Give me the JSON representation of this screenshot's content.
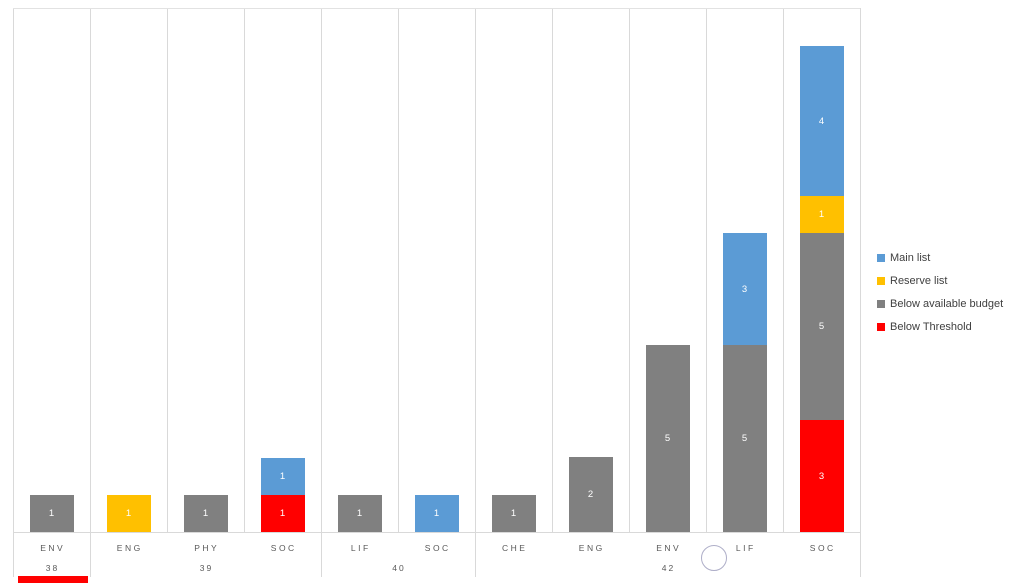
{
  "chart_data": {
    "type": "bar",
    "stacked": true,
    "title": "",
    "xlabel": "",
    "ylabel": "",
    "ylim": [
      0,
      14
    ],
    "y_axis_labels_visible": false,
    "gridlines": "vertical-at-category-boundaries-plus-top-line",
    "legend_position": "right",
    "data_labels": "segment values, white, centered",
    "groups": [
      {
        "label": "38",
        "categories": [
          "ENV"
        ]
      },
      {
        "label": "39",
        "categories": [
          "ENG",
          "PHY",
          "SOC"
        ]
      },
      {
        "label": "40",
        "categories": [
          "LIF",
          "SOC"
        ]
      },
      {
        "label": "42",
        "categories": [
          "CHE",
          "ENG",
          "ENV",
          "LIF",
          "SOC"
        ]
      }
    ],
    "series": [
      {
        "name": "Main list",
        "color": "#5B9BD5",
        "values": [
          0,
          0,
          0,
          1,
          0,
          1,
          0,
          0,
          0,
          3,
          4
        ]
      },
      {
        "name": "Reserve list",
        "color": "#FFC000",
        "values": [
          0,
          1,
          0,
          0,
          0,
          0,
          0,
          0,
          0,
          0,
          1
        ]
      },
      {
        "name": "Below available budget",
        "color": "#808080",
        "values": [
          1,
          0,
          1,
          0,
          1,
          0,
          1,
          2,
          5,
          5,
          5
        ]
      },
      {
        "name": "Below Threshold",
        "color": "#FF0000",
        "values": [
          0,
          0,
          0,
          1,
          0,
          0,
          0,
          0,
          0,
          0,
          3
        ]
      }
    ],
    "stack_order_bottom_to_top": [
      "Below Threshold",
      "Below available budget",
      "Reserve list",
      "Main list"
    ]
  },
  "annotations": {
    "circle_outline_color": "#AEAEC8",
    "partial_red_bar_color": "#FF0000"
  },
  "colors": {
    "background": "#FFFFFF",
    "gridline": "#D9D9D9",
    "axis_text": "#595959",
    "legend_text": "#404040"
  }
}
